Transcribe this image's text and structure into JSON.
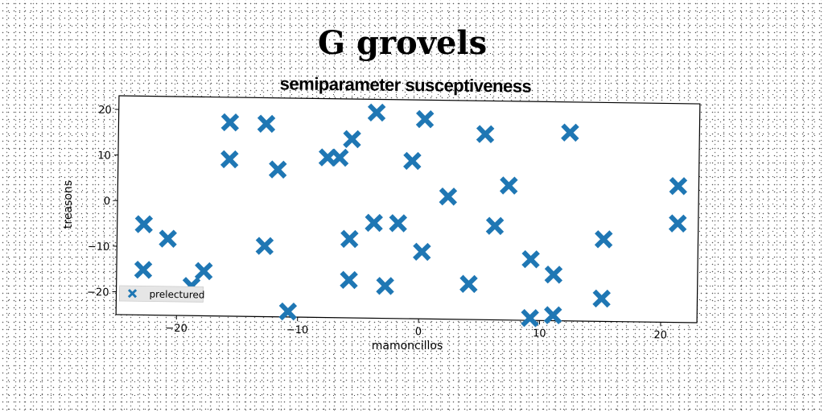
{
  "chart_data": {
    "type": "scatter",
    "title": "G grovels",
    "subtitle": "semiparameter susceptiveness",
    "xlabel": "mamoncillos",
    "ylabel": "treasons",
    "xlim": [
      -25,
      23
    ],
    "ylim": [
      -25,
      23
    ],
    "xticks": [
      -20,
      -10,
      0,
      10,
      20
    ],
    "yticks": [
      20,
      10,
      0,
      -10,
      -20
    ],
    "xtick_labels": [
      "−20",
      "−10",
      "0",
      "10",
      "20"
    ],
    "ytick_labels": [
      "20",
      "10",
      "0",
      "−10",
      "−20"
    ],
    "grid": false,
    "legend_position": "bottom-left",
    "marker": "x-filled",
    "color": "#1f77b4",
    "series": [
      {
        "name": "prelectured",
        "points": [
          [
            -15.8,
            17.5
          ],
          [
            -12.8,
            17.3
          ],
          [
            -3.7,
            20.1
          ],
          [
            0.3,
            18.8
          ],
          [
            5.3,
            15.7
          ],
          [
            12.3,
            16.3
          ],
          [
            -15.8,
            9.4
          ],
          [
            -11.8,
            7.3
          ],
          [
            -7.7,
            10.1
          ],
          [
            -6.7,
            10.1
          ],
          [
            -5.7,
            14.2
          ],
          [
            -0.7,
            9.6
          ],
          [
            7.3,
            4.5
          ],
          [
            2.3,
            1.9
          ],
          [
            21.3,
            4.9
          ],
          [
            -22.8,
            -5.1
          ],
          [
            -20.8,
            -8.2
          ],
          [
            -12.8,
            -9.5
          ],
          [
            -5.8,
            -7.7
          ],
          [
            -3.8,
            -4.1
          ],
          [
            -1.8,
            -4.1
          ],
          [
            0.2,
            -10.3
          ],
          [
            6.2,
            -4.4
          ],
          [
            9.2,
            -11.6
          ],
          [
            15.2,
            -7.0
          ],
          [
            21.3,
            -3.3
          ],
          [
            -22.8,
            -15.1
          ],
          [
            -17.8,
            -15.2
          ],
          [
            -18.8,
            -18.5
          ],
          [
            -10.8,
            -23.8
          ],
          [
            -5.8,
            -16.7
          ],
          [
            -2.8,
            -17.9
          ],
          [
            4.1,
            -17.2
          ],
          [
            9.2,
            -24.5
          ],
          [
            11.1,
            -14.9
          ],
          [
            11.1,
            -23.8
          ],
          [
            15.1,
            -20.0
          ]
        ]
      }
    ]
  }
}
